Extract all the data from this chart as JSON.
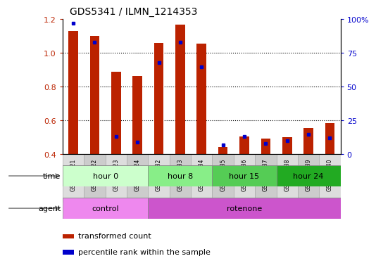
{
  "title": "GDS5341 / ILMN_1214353",
  "samples": [
    "GSM567521",
    "GSM567522",
    "GSM567523",
    "GSM567524",
    "GSM567532",
    "GSM567533",
    "GSM567534",
    "GSM567535",
    "GSM567536",
    "GSM567537",
    "GSM567538",
    "GSM567539",
    "GSM567540"
  ],
  "transformed_count": [
    1.13,
    1.1,
    0.89,
    0.865,
    1.06,
    1.17,
    1.055,
    0.445,
    0.505,
    0.495,
    0.5,
    0.555,
    0.585
  ],
  "percentile_rank": [
    97,
    83,
    13,
    9,
    68,
    83,
    65,
    7,
    13,
    8,
    10,
    15,
    12
  ],
  "ylim_left": [
    0.4,
    1.2
  ],
  "ylim_right": [
    0,
    100
  ],
  "yticks_left": [
    0.4,
    0.6,
    0.8,
    1.0,
    1.2
  ],
  "yticks_right": [
    0,
    25,
    50,
    75,
    100
  ],
  "ytick_labels_right": [
    "0",
    "25",
    "50",
    "75",
    "100%"
  ],
  "bar_color": "#bb2200",
  "marker_color": "#0000cc",
  "time_groups": [
    {
      "label": "hour 0",
      "start": 0,
      "end": 4,
      "color": "#ccffcc"
    },
    {
      "label": "hour 8",
      "start": 4,
      "end": 7,
      "color": "#88ee88"
    },
    {
      "label": "hour 15",
      "start": 7,
      "end": 10,
      "color": "#55cc55"
    },
    {
      "label": "hour 24",
      "start": 10,
      "end": 13,
      "color": "#22aa22"
    }
  ],
  "agent_groups": [
    {
      "label": "control",
      "start": 0,
      "end": 4,
      "color": "#ee88ee"
    },
    {
      "label": "rotenone",
      "start": 4,
      "end": 13,
      "color": "#cc55cc"
    }
  ],
  "time_label": "time",
  "agent_label": "agent",
  "legend_red_label": "transformed count",
  "legend_blue_label": "percentile rank within the sample",
  "bg_color": "#ffffff",
  "sample_cell_color_odd": "#cccccc",
  "sample_cell_color_even": "#dddddd",
  "grid_yticks": [
    0.6,
    0.8,
    1.0
  ]
}
